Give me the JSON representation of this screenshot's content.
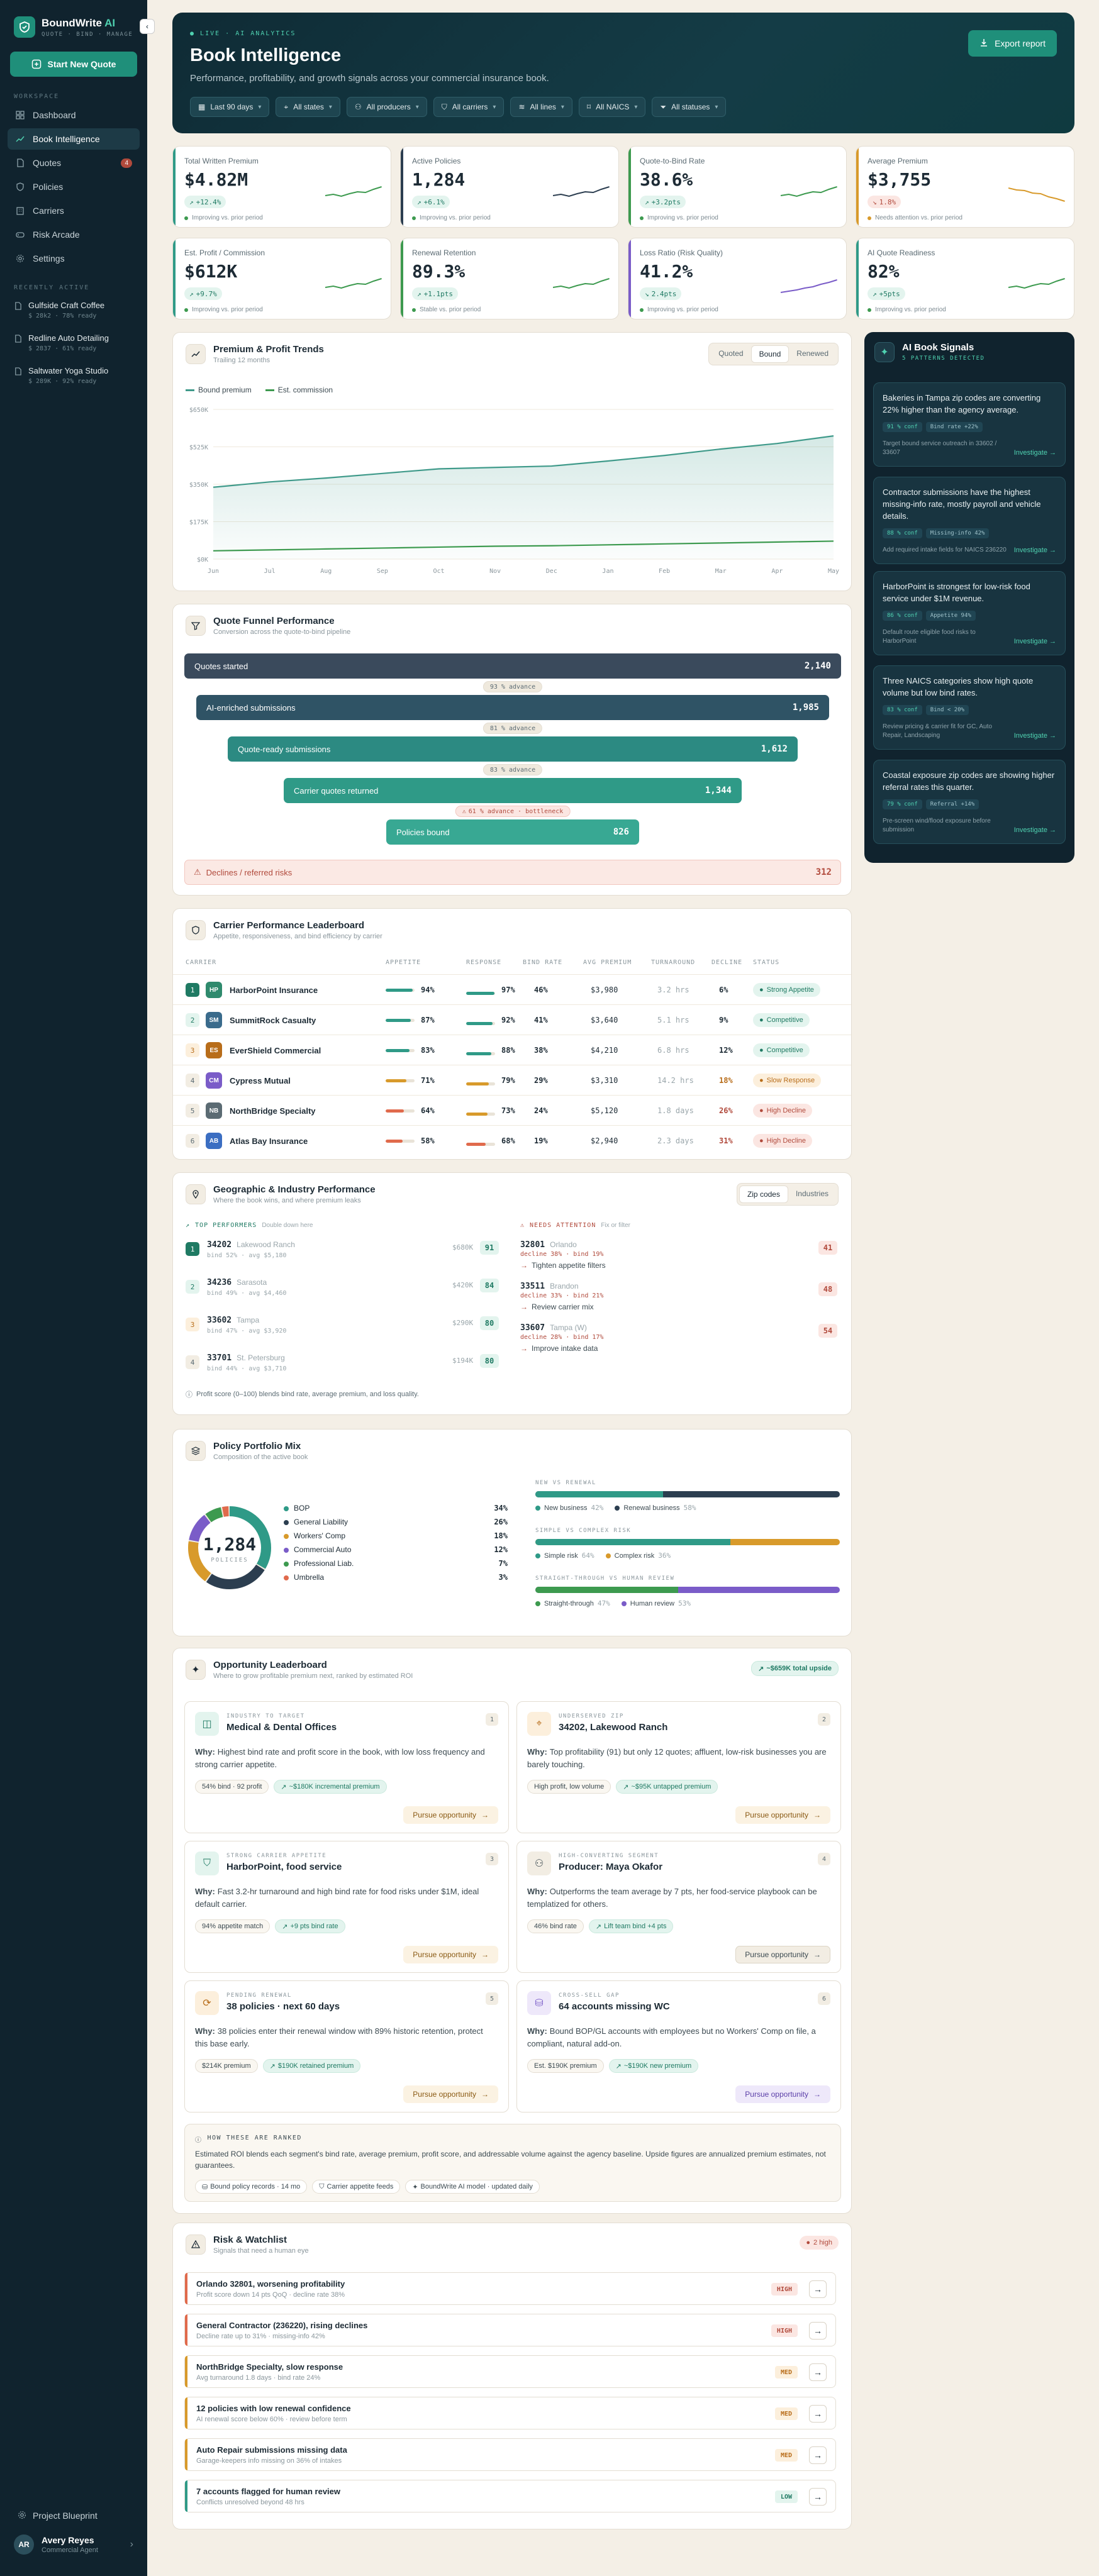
{
  "brand": {
    "name": "BoundWrite",
    "name_suffix": "AI",
    "tagline": "QUOTE · BIND · MANAGE"
  },
  "sidebar": {
    "new_quote": "Start New Quote",
    "workspace_label": "WORKSPACE",
    "items": [
      {
        "label": "Dashboard",
        "icon": "dashboard-icon"
      },
      {
        "label": "Book Intelligence",
        "icon": "trend-icon",
        "active": true
      },
      {
        "label": "Quotes",
        "icon": "file-icon",
        "badge": "4"
      },
      {
        "label": "Policies",
        "icon": "shield-icon"
      },
      {
        "label": "Carriers",
        "icon": "building-icon"
      },
      {
        "label": "Risk Arcade",
        "icon": "gamepad-icon"
      },
      {
        "label": "Settings",
        "icon": "gear-icon"
      }
    ],
    "recent_label": "RECENTLY ACTIVE",
    "recent": [
      {
        "title": "Gulfside Craft Coffee",
        "meta": "$ 28k2 · 78% ready"
      },
      {
        "title": "Redline Auto Detailing",
        "meta": "$ 2837 · 61% ready"
      },
      {
        "title": "Saltwater Yoga Studio",
        "meta": "$ 289K · 92% ready"
      }
    ],
    "blueprint": "Project Blueprint",
    "user": {
      "initials": "AR",
      "name": "Avery Reyes",
      "role": "Commercial Agent"
    }
  },
  "hero": {
    "live": "LIVE · AI ANALYTICS",
    "title": "Book Intelligence",
    "subtitle": "Performance, profitability, and growth signals across your commercial insurance book.",
    "export": "Export report",
    "filters": [
      "Last 90 days",
      "All states",
      "All producers",
      "All carriers",
      "All lines",
      "All NAICS",
      "All statuses"
    ]
  },
  "kpis": [
    {
      "label": "Total Written Premium",
      "value": "$4.82M",
      "delta": "+12.4%",
      "dir": "up",
      "note": "Improving vs. prior period"
    },
    {
      "label": "Active Policies",
      "value": "1,284",
      "delta": "+6.1%",
      "dir": "up",
      "note": "Improving vs. prior period"
    },
    {
      "label": "Quote-to-Bind Rate",
      "value": "38.6%",
      "delta": "+3.2pts",
      "dir": "up",
      "note": "Improving vs. prior period"
    },
    {
      "label": "Average Premium",
      "value": "$3,755",
      "delta": "1.8%",
      "dir": "down",
      "note": "Needs attention vs. prior period"
    },
    {
      "label": "Est. Profit / Commission",
      "value": "$612K",
      "delta": "+9.7%",
      "dir": "up",
      "note": "Improving vs. prior period"
    },
    {
      "label": "Renewal Retention",
      "value": "89.3%",
      "delta": "+1.1pts",
      "dir": "up",
      "note": "Stable vs. prior period"
    },
    {
      "label": "Loss Ratio (Risk Quality)",
      "value": "41.2%",
      "delta": "2.4pts",
      "dir": "down-good",
      "note": "Improving vs. prior period"
    },
    {
      "label": "AI Quote Readiness",
      "value": "82%",
      "delta": "+5pts",
      "dir": "up",
      "note": "Improving vs. prior period"
    }
  ],
  "trends": {
    "title": "Premium & Profit Trends",
    "subtitle": "Trailing 12 months",
    "tabs": [
      "Quoted",
      "Bound",
      "Renewed"
    ],
    "active_tab": "Bound",
    "legend": [
      "Bound premium",
      "Est. commission"
    ]
  },
  "chart_data": {
    "type": "line",
    "categories": [
      "Jun",
      "Jul",
      "Aug",
      "Sep",
      "Oct",
      "Nov",
      "Dec",
      "Jan",
      "Feb",
      "Mar",
      "Apr",
      "May"
    ],
    "y_ticks": [
      "$0K",
      "$175K",
      "$350K",
      "$525K",
      "$650K"
    ],
    "ylim": [
      0,
      650
    ],
    "series": [
      {
        "name": "Bound premium",
        "color": "#3f9a8a",
        "values": [
          312,
          335,
          352,
          372,
          392,
          398,
          404,
          426,
          450,
          478,
          502,
          535
        ]
      },
      {
        "name": "Est. commission",
        "color": "#3d9a4f",
        "values": [
          36,
          40,
          44,
          48,
          52,
          56,
          58,
          62,
          66,
          70,
          74,
          78
        ]
      }
    ]
  },
  "funnel": {
    "title": "Quote Funnel Performance",
    "subtitle": "Conversion across the quote-to-bind pipeline",
    "stages": [
      {
        "label": "Quotes started",
        "value": "2,140",
        "color": "#3a4a5c"
      },
      {
        "label": "AI-enriched submissions",
        "value": "1,985",
        "color": "#2f5365"
      },
      {
        "label": "Quote-ready submissions",
        "value": "1,612",
        "color": "#2c8a82"
      },
      {
        "label": "Carrier quotes returned",
        "value": "1,344",
        "color": "#2f9a87"
      },
      {
        "label": "Policies bound",
        "value": "826",
        "color": "#38a893"
      }
    ],
    "advances": [
      "93 % advance",
      "81 % advance",
      "83 % advance",
      "61 % advance · bottleneck"
    ],
    "declines": {
      "label": "Declines / referred risks",
      "value": "312"
    }
  },
  "leaderboard": {
    "title": "Carrier Performance Leaderboard",
    "subtitle": "Appetite, responsiveness, and bind efficiency by carrier",
    "columns": [
      "CARRIER",
      "APPETITE",
      "RESPONSE",
      "BIND RATE",
      "AVG PREMIUM",
      "TURNAROUND",
      "DECLINE",
      "STATUS"
    ],
    "rows": [
      {
        "rank": "1",
        "abbr": "HP",
        "color": "#2f8a6d",
        "name": "HarborPoint Insurance",
        "appetite": "94%",
        "app_v": 94,
        "response": "97%",
        "res_v": 97,
        "bind": "46%",
        "premium": "$3,980",
        "turn": "3.2 hrs",
        "decline": "6%",
        "status": "Strong Appetite",
        "st": "green"
      },
      {
        "rank": "2",
        "abbr": "SM",
        "color": "#3a6b8c",
        "name": "SummitRock Casualty",
        "appetite": "87%",
        "app_v": 87,
        "response": "92%",
        "res_v": 92,
        "bind": "41%",
        "premium": "$3,640",
        "turn": "5.1 hrs",
        "decline": "9%",
        "status": "Competitive",
        "st": "green"
      },
      {
        "rank": "3",
        "abbr": "ES",
        "color": "#b86d1a",
        "name": "EverShield Commercial",
        "appetite": "83%",
        "app_v": 83,
        "response": "88%",
        "res_v": 88,
        "bind": "38%",
        "premium": "$4,210",
        "turn": "6.8 hrs",
        "decline": "12%",
        "status": "Competitive",
        "st": "green"
      },
      {
        "rank": "4",
        "abbr": "CM",
        "color": "#7a5cc8",
        "name": "Cypress Mutual",
        "appetite": "71%",
        "app_v": 71,
        "response": "79%",
        "res_v": 79,
        "bind": "29%",
        "premium": "$3,310",
        "turn": "14.2 hrs",
        "decline": "18%",
        "status": "Slow Response",
        "st": "orange"
      },
      {
        "rank": "5",
        "abbr": "NB",
        "color": "#5b6b73",
        "name": "NorthBridge Specialty",
        "appetite": "64%",
        "app_v": 64,
        "response": "73%",
        "res_v": 73,
        "bind": "24%",
        "premium": "$5,120",
        "turn": "1.8 days",
        "decline": "26%",
        "status": "High Decline",
        "st": "red"
      },
      {
        "rank": "6",
        "abbr": "AB",
        "color": "#3b6ec2",
        "name": "Atlas Bay Insurance",
        "appetite": "58%",
        "app_v": 58,
        "response": "68%",
        "res_v": 68,
        "bind": "19%",
        "premium": "$2,940",
        "turn": "2.3 days",
        "decline": "31%",
        "status": "High Decline",
        "st": "red"
      }
    ]
  },
  "ai_signals": {
    "title": "AI Book Signals",
    "subtitle": "5 PATTERNS DETECTED",
    "link": "Investigate",
    "items": [
      {
        "text": "Bakeries in Tampa zip codes are converting 22% higher than the agency average.",
        "chips": [
          "91 % conf",
          "Bind rate +22%"
        ],
        "foot": "Target bound service outreach in 33602 / 33607"
      },
      {
        "text": "Contractor submissions have the highest missing-info rate, mostly payroll and vehicle details.",
        "chips": [
          "88 % conf",
          "Missing-info 42%"
        ],
        "foot": "Add required intake fields for NAICS 236220"
      },
      {
        "text": "HarborPoint is strongest for low-risk food service under $1M revenue.",
        "chips": [
          "86 % conf",
          "Appetite 94%"
        ],
        "foot": "Default route eligible food risks to HarborPoint"
      },
      {
        "text": "Three NAICS categories show high quote volume but low bind rates.",
        "chips": [
          "83 % conf",
          "Bind < 20%"
        ],
        "foot": "Review pricing & carrier fit for GC, Auto Repair, Landscaping"
      },
      {
        "text": "Coastal exposure zip codes are showing higher referral rates this quarter.",
        "chips": [
          "79 % conf",
          "Referral +14%"
        ],
        "foot": "Pre-screen wind/flood exposure before submission"
      }
    ]
  },
  "geo": {
    "title": "Geographic & Industry Performance",
    "subtitle": "Where the book wins, and where premium leaks",
    "tabs": [
      "Zip codes",
      "Industries"
    ],
    "active_tab": "Zip codes",
    "top_label": "TOP PERFORMERS",
    "top_hint": "Double down here",
    "attn_label": "NEEDS ATTENTION",
    "attn_hint": "Fix or filter",
    "top": [
      {
        "rank": "1",
        "zip": "34202",
        "city": "Lakewood Ranch",
        "meta": "bind 52% · avg $5,180",
        "prem": "$680K",
        "score": "91"
      },
      {
        "rank": "2",
        "zip": "34236",
        "city": "Sarasota",
        "meta": "bind 49% · avg $4,460",
        "prem": "$420K",
        "score": "84"
      },
      {
        "rank": "3",
        "zip": "33602",
        "city": "Tampa",
        "meta": "bind 47% · avg $3,920",
        "prem": "$290K",
        "score": "80"
      },
      {
        "rank": "4",
        "zip": "33701",
        "city": "St. Petersburg",
        "meta": "bind 44% · avg $3,710",
        "prem": "$194K",
        "score": "80"
      }
    ],
    "attention": [
      {
        "zip": "32801",
        "city": "Orlando",
        "meta": "decline 38% · bind 19%",
        "action": "Tighten appetite filters",
        "score": "41"
      },
      {
        "zip": "33511",
        "city": "Brandon",
        "meta": "decline 33% · bind 21%",
        "action": "Review carrier mix",
        "score": "48"
      },
      {
        "zip": "33607",
        "city": "Tampa (W)",
        "meta": "decline 28% · bind 17%",
        "action": "Improve intake data",
        "score": "54"
      }
    ],
    "footnote": "Profit score (0–100) blends bind rate, average premium, and loss quality."
  },
  "portfolio": {
    "title": "Policy Portfolio Mix",
    "subtitle": "Composition of the active book",
    "total": "1,284",
    "total_label": "POLICIES",
    "lines": [
      {
        "name": "BOP",
        "pct": "34%",
        "v": 34,
        "color": "#2f9a87"
      },
      {
        "name": "General Liability",
        "pct": "26%",
        "v": 26,
        "color": "#2c3e50"
      },
      {
        "name": "Workers' Comp",
        "pct": "18%",
        "v": 18,
        "color": "#d89a2b"
      },
      {
        "name": "Commercial Auto",
        "pct": "12%",
        "v": 12,
        "color": "#7a5cc8"
      },
      {
        "name": "Professional Liab.",
        "pct": "7%",
        "v": 7,
        "color": "#3d9a4f"
      },
      {
        "name": "Umbrella",
        "pct": "3%",
        "v": 3,
        "color": "#e06a4c"
      }
    ],
    "splits": [
      {
        "label": "NEW VS RENEWAL",
        "a": "New business",
        "a_pct": "42%",
        "a_v": 42,
        "a_color": "#2f9a87",
        "b": "Renewal business",
        "b_pct": "58%",
        "b_color": "#2c3e50"
      },
      {
        "label": "SIMPLE VS COMPLEX RISK",
        "a": "Simple risk",
        "a_pct": "64%",
        "a_v": 64,
        "a_color": "#2f9a87",
        "b": "Complex risk",
        "b_pct": "36%",
        "b_color": "#d89a2b"
      },
      {
        "label": "STRAIGHT-THROUGH VS HUMAN REVIEW",
        "a": "Straight-through",
        "a_pct": "47%",
        "a_v": 47,
        "a_color": "#3d9a4f",
        "b": "Human review",
        "b_pct": "53%",
        "b_color": "#7a5cc8"
      }
    ]
  },
  "opportunities": {
    "title": "Opportunity Leaderboard",
    "subtitle": "Where to grow profitable premium next, ranked by estimated ROI",
    "total": "~$659K total upside",
    "why_label": "Why:",
    "items": [
      {
        "kicker": "INDUSTRY TO TARGET",
        "title": "Medical & Dental Offices",
        "num": "1",
        "why": "Highest bind rate and profit score in the book, with low loss frequency and strong carrier appetite.",
        "chips": [
          "54% bind · 92 profit"
        ],
        "gain": "~$180K incremental premium",
        "btn": "Pursue opportunity",
        "tone": "green"
      },
      {
        "kicker": "UNDERSERVED ZIP",
        "title": "34202, Lakewood Ranch",
        "num": "2",
        "why": "Top profitability (91) but only 12 quotes; affluent, low-risk businesses you are barely touching.",
        "chips": [
          "High profit, low volume"
        ],
        "gain": "~$95K untapped premium",
        "btn": "Pursue opportunity",
        "tone": "orange"
      },
      {
        "kicker": "STRONG CARRIER APPETITE",
        "title": "HarborPoint, food service",
        "num": "3",
        "why": "Fast 3.2-hr turnaround and high bind rate for food risks under $1M, ideal default carrier.",
        "chips": [
          "94% appetite match"
        ],
        "gain": "+9 pts bind rate",
        "btn": "Pursue opportunity",
        "tone": "green"
      },
      {
        "kicker": "HIGH-CONVERTING SEGMENT",
        "title": "Producer: Maya Okafor",
        "num": "4",
        "why": "Outperforms the team average by 7 pts, her food-service playbook can be templatized for others.",
        "chips": [
          "46% bind rate"
        ],
        "gain": "Lift team bind +4 pts",
        "btn": "Pursue opportunity",
        "tone": "neutral"
      },
      {
        "kicker": "PENDING RENEWAL",
        "title": "38 policies · next 60 days",
        "num": "5",
        "why": "38 policies enter their renewal window with 89% historic retention, protect this base early.",
        "chips": [
          "$214K premium"
        ],
        "gain": "$190K retained premium",
        "btn": "Pursue opportunity",
        "tone": "orange"
      },
      {
        "kicker": "CROSS-SELL GAP",
        "title": "64 accounts missing WC",
        "num": "6",
        "why": "Bound BOP/GL accounts with employees but no Workers' Comp on file, a compliant, natural add-on.",
        "chips": [
          "Est. $190K premium"
        ],
        "gain": "~$190K new premium",
        "btn": "Pursue opportunity",
        "tone": "purple"
      }
    ],
    "method_label": "HOW THESE ARE RANKED",
    "method_text": "Estimated ROI blends each segment's bind rate, average premium, profit score, and addressable volume against the agency baseline. Upside figures are annualized premium estimates, not guarantees.",
    "sources": [
      "Bound policy records · 14 mo",
      "Carrier appetite feeds",
      "BoundWrite AI model · updated daily"
    ]
  },
  "risk": {
    "title": "Risk & Watchlist",
    "subtitle": "Signals that need a human eye",
    "badge": "2 high",
    "items": [
      {
        "title": "Orlando 32801, worsening profitability",
        "sub": "Profit score down 14 pts QoQ · decline rate 38%",
        "level": "HIGH",
        "tone": "red"
      },
      {
        "title": "General Contractor (236220), rising declines",
        "sub": "Decline rate up to 31% · missing-info 42%",
        "level": "HIGH",
        "tone": "red"
      },
      {
        "title": "NorthBridge Specialty, slow response",
        "sub": "Avg turnaround 1.8 days · bind rate 24%",
        "level": "MED",
        "tone": "orange"
      },
      {
        "title": "12 policies with low renewal confidence",
        "sub": "AI renewal score below 60% · review before term",
        "level": "MED",
        "tone": "orange"
      },
      {
        "title": "Auto Repair submissions missing data",
        "sub": "Garage-keepers info missing on 36% of intakes",
        "level": "MED",
        "tone": "orange"
      },
      {
        "title": "7 accounts flagged for human review",
        "sub": "Conflicts unresolved beyond 48 hrs",
        "level": "LOW",
        "tone": "green"
      }
    ]
  }
}
